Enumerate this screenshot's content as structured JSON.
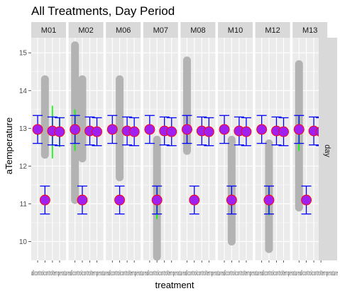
{
  "chart_data": {
    "type": "scatter",
    "title": "All Treatments, Day Period",
    "xlabel": "treatment",
    "ylabel": "aTemperature",
    "ylim": [
      9.5,
      15.4
    ],
    "yticks": [
      10,
      11,
      12,
      13,
      14,
      15
    ],
    "x_categories": [
      "allcontrol",
      "control",
      "temperature",
      "temperature_avg"
    ],
    "x_tick_text": "allcontrolcontroltemperatureallcontrolcontroltemperatureallcontrolcontroltemperatureallcontrolcontroltemperatureallcontrolcontroltemperatureallcontrolcontroltemperatureallcontrolcontroltemperatureallcontrolcontroltemperature",
    "row_strip": "day",
    "colors": {
      "panel_bg": "#ebebeb",
      "grid": "#ffffff",
      "strip_bg": "#d9d9d9",
      "raw_points": "#b3b3b3",
      "mean_fill": "#a020f0",
      "mean_outline": "#ff0000",
      "error_bar": "#0000ff",
      "green_bar": "#00ff00"
    },
    "panels": [
      {
        "name": "M01",
        "raw_range": [
          null,
          [
            12.3,
            14.3
          ],
          null,
          null
        ],
        "means": [
          12.97,
          11.1,
          12.93,
          12.91
        ],
        "green": [
          [
            12.8,
            13.1
          ],
          null,
          [
            12.2,
            13.6
          ],
          [
            12.5,
            13.3
          ]
        ]
      },
      {
        "name": "M02",
        "raw_range": [
          [
            11.1,
            15.2
          ],
          [
            12.2,
            14.3
          ],
          null,
          null
        ],
        "means": [
          12.97,
          11.1,
          12.93,
          12.91
        ],
        "green": [
          [
            12.4,
            13.5
          ],
          null,
          null,
          null
        ]
      },
      {
        "name": "M06",
        "raw_range": [
          null,
          [
            11.7,
            14.3
          ],
          null,
          null
        ],
        "means": [
          12.97,
          11.1,
          12.93,
          12.91
        ],
        "green": [
          null,
          null,
          null,
          null
        ]
      },
      {
        "name": "M07",
        "raw_range": [
          null,
          [
            9.6,
            12.7
          ],
          null,
          null
        ],
        "means": [
          12.97,
          11.1,
          12.93,
          12.91
        ],
        "green": [
          null,
          [
            10.6,
            11.4
          ],
          null,
          null
        ]
      },
      {
        "name": "M08",
        "raw_range": [
          [
            12.4,
            14.8
          ],
          null,
          null,
          null
        ],
        "means": [
          12.97,
          11.1,
          12.93,
          12.91
        ],
        "green": [
          null,
          null,
          null,
          null
        ]
      },
      {
        "name": "M10",
        "raw_range": [
          null,
          [
            10.0,
            12.7
          ],
          null,
          null
        ],
        "means": [
          12.97,
          11.1,
          12.93,
          12.91
        ],
        "green": [
          null,
          null,
          null,
          null
        ]
      },
      {
        "name": "M12",
        "raw_range": [
          null,
          [
            9.8,
            12.6
          ],
          null,
          null
        ],
        "means": [
          12.97,
          11.1,
          12.93,
          12.91
        ],
        "green": [
          null,
          [
            10.7,
            11.4
          ],
          null,
          null
        ]
      },
      {
        "name": "M13",
        "raw_range": [
          [
            10.9,
            14.7
          ],
          null,
          null,
          null
        ],
        "means": [
          12.97,
          11.1,
          12.93,
          12.91
        ],
        "green": [
          [
            12.4,
            13.3
          ],
          null,
          null,
          null
        ]
      }
    ]
  }
}
